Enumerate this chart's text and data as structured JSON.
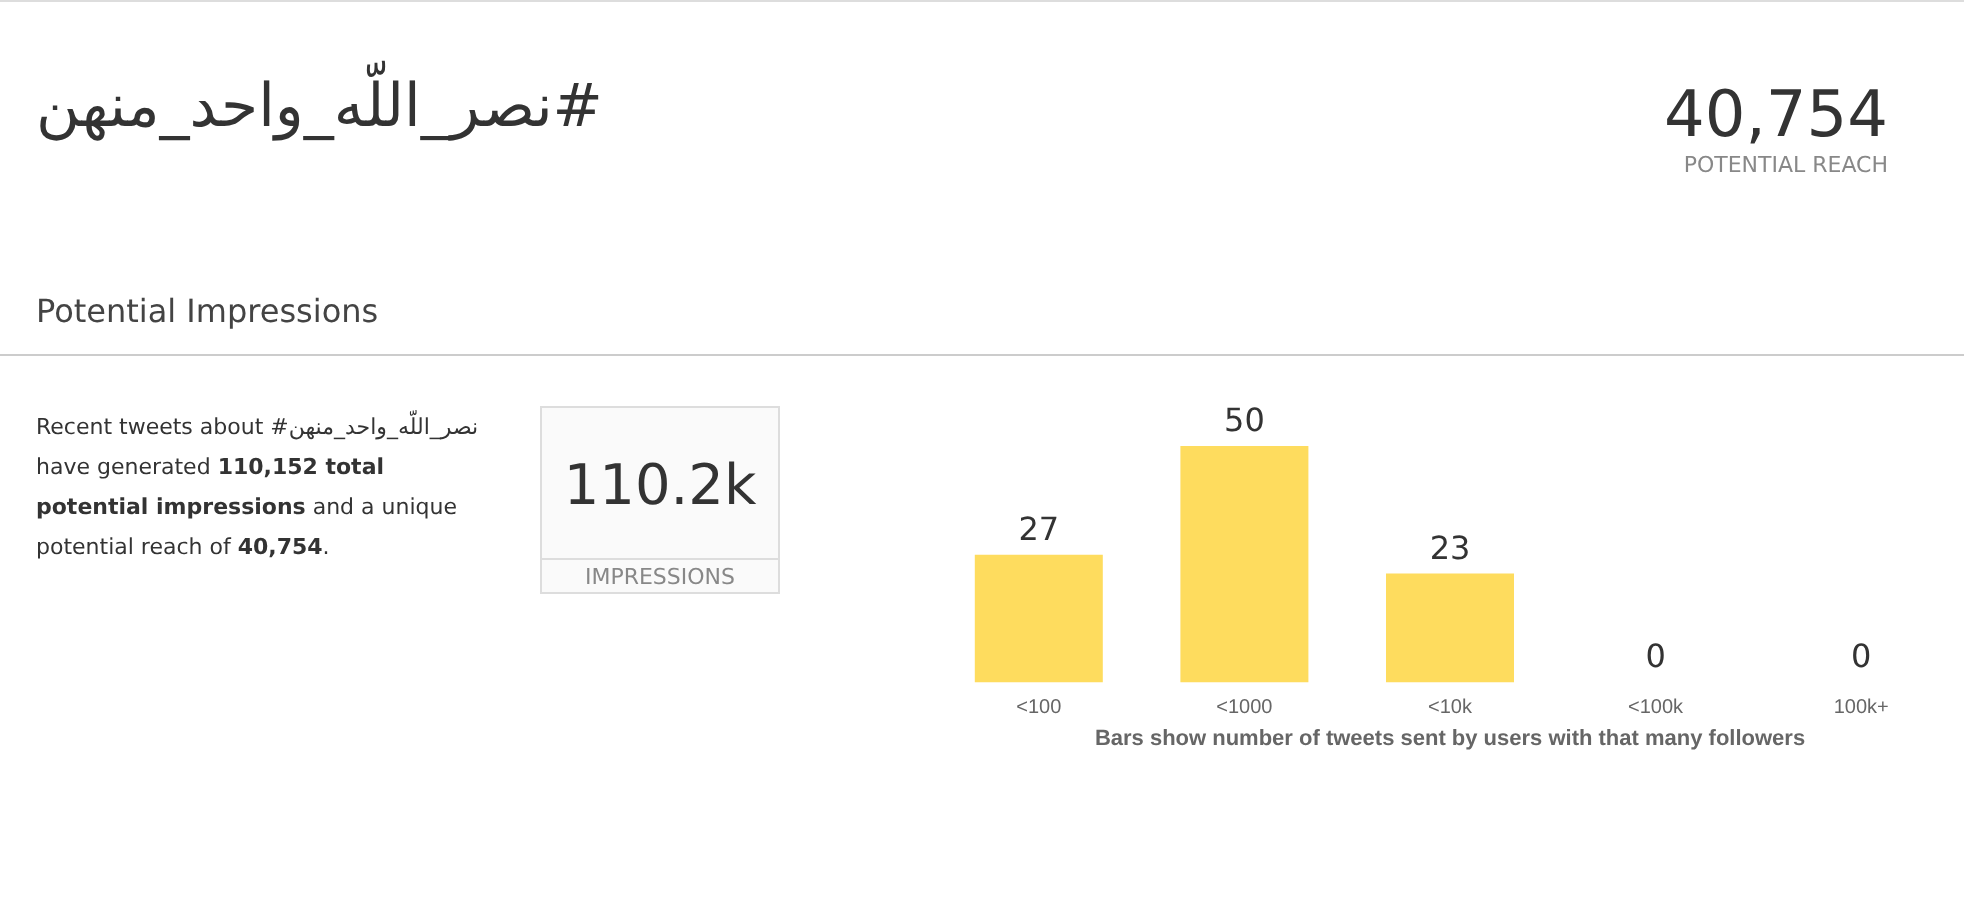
{
  "chart_data": {
    "type": "bar",
    "title": "#نصر_اللّه_واحد_منهن",
    "subtitle": "Potential Impressions",
    "xlabel": "Bars show number of tweets sent by users with that many followers",
    "categories": [
      "<100",
      "<1000",
      "<10k",
      "<100k",
      "100k+"
    ],
    "values": [
      27,
      50,
      23,
      0,
      0
    ],
    "color": "#fedc5e",
    "data_labels": true,
    "annotations": [
      "40,754",
      "POTENTIAL REACH",
      "Recent tweets about #نصر_اللّه_واحد_منهن have generated ",
      "110,152 total potential impressions",
      " and a unique potential reach of ",
      "40,754",
      ".",
      "110.2k",
      "IMPRESSIONS"
    ]
  }
}
